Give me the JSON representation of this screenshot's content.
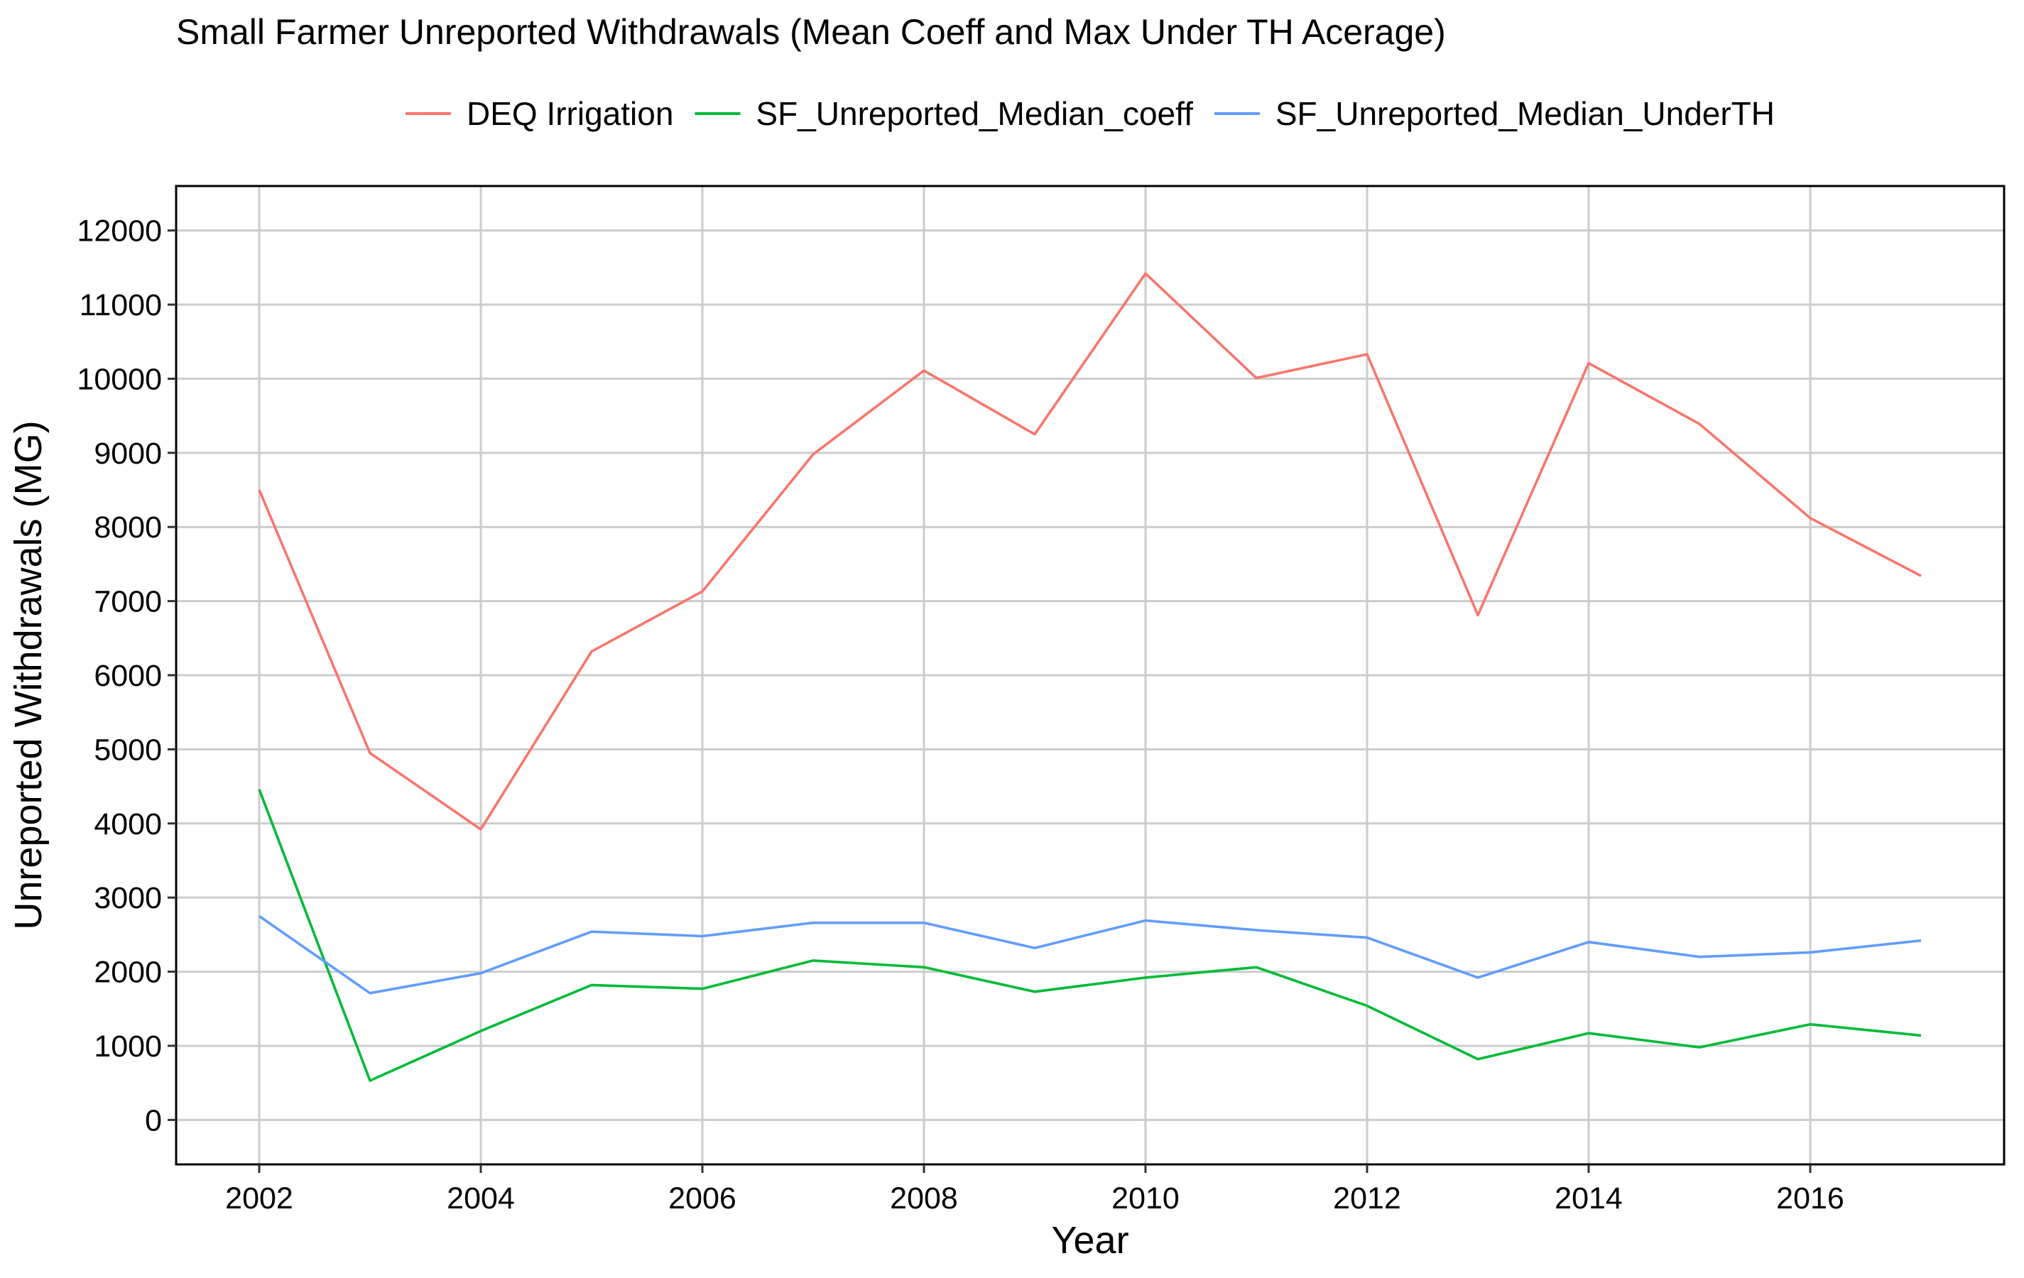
{
  "chart_data": {
    "type": "line",
    "title": "Small Farmer Unreported Withdrawals (Mean Coeff and Max Under TH Acerage)",
    "xlabel": "Year",
    "ylabel": "Unreported Withdrawals (MG)",
    "x": [
      2002,
      2003,
      2004,
      2005,
      2006,
      2007,
      2008,
      2009,
      2010,
      2011,
      2012,
      2013,
      2014,
      2015,
      2016,
      2017
    ],
    "xlim": [
      2001.25,
      2017.75
    ],
    "ylim": [
      -600,
      12600
    ],
    "xticks": [
      2002,
      2004,
      2006,
      2008,
      2010,
      2012,
      2014,
      2016
    ],
    "xtick_labels": [
      "2002",
      "2004",
      "2006",
      "2008",
      "2010",
      "2012",
      "2014",
      "2016"
    ],
    "yticks": [
      0,
      1000,
      2000,
      3000,
      4000,
      5000,
      6000,
      7000,
      8000,
      9000,
      10000,
      11000,
      12000
    ],
    "ytick_labels": [
      "0",
      "1000",
      "2000",
      "3000",
      "4000",
      "5000",
      "6000",
      "7000",
      "8000",
      "9000",
      "10000",
      "11000",
      "12000"
    ],
    "grid": true,
    "legend_position": "top",
    "series": [
      {
        "name": "DEQ Irrigation",
        "color": "#F8766D",
        "values": [
          8500,
          4950,
          3920,
          6320,
          7130,
          8980,
          10110,
          9250,
          11420,
          10010,
          10330,
          6810,
          10210,
          9390,
          8120,
          7340
        ]
      },
      {
        "name": "SF_Unreported_Median_coeff",
        "color": "#00BA38",
        "values": [
          4460,
          530,
          1200,
          1820,
          1770,
          2150,
          2060,
          1730,
          1920,
          2060,
          1540,
          820,
          1170,
          980,
          1290,
          1140
        ]
      },
      {
        "name": "SF_Unreported_Median_UnderTH",
        "color": "#619CFF",
        "values": [
          2750,
          1710,
          1980,
          2540,
          2480,
          2660,
          2660,
          2320,
          2690,
          2560,
          2460,
          1920,
          2400,
          2200,
          2260,
          2420
        ]
      }
    ]
  }
}
